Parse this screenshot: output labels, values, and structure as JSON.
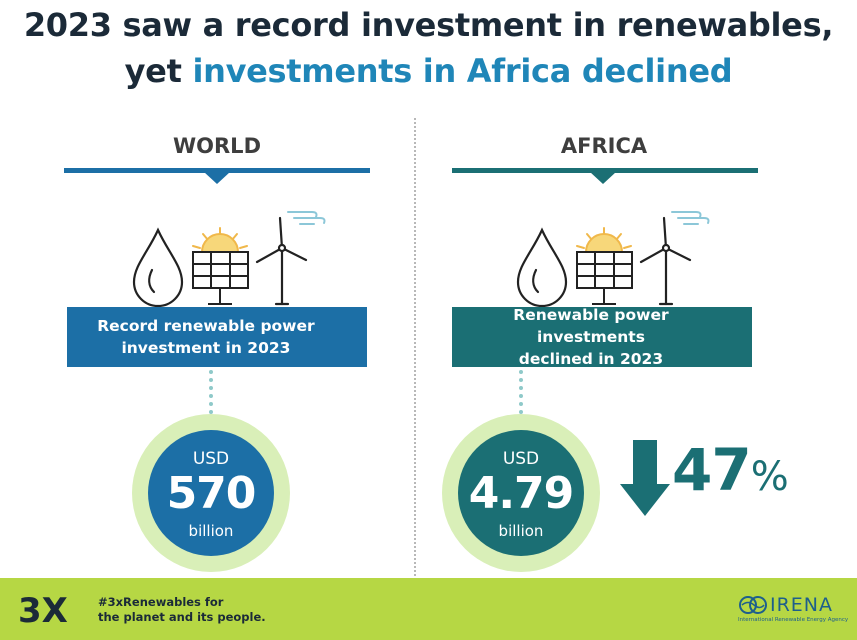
{
  "title": {
    "line1": "2023 saw a record investment in renewables,",
    "line2_prefix": "yet ",
    "line2_accent": "investments in Africa declined"
  },
  "world": {
    "label": "WORLD",
    "banner_line1": "Record renewable power",
    "banner_line2": "investment in 2023",
    "currency": "USD",
    "amount": "570",
    "unit": "billion"
  },
  "africa": {
    "label": "AFRICA",
    "banner_line1": "Renewable power investments",
    "banner_line2": "declined in 2023",
    "currency": "USD",
    "amount": "4.79",
    "unit": "billion",
    "decline_value": "47",
    "decline_symbol": "%"
  },
  "footer": {
    "logo_text": "3X",
    "hashtag_line1": "#3xRenewables for",
    "hashtag_line2": "the planet and its people.",
    "org_name": "IRENA",
    "org_full": "International Renewable Energy Agency"
  },
  "colors": {
    "world_blue": "#1c6fa6",
    "africa_teal": "#1b6f74",
    "title_accent": "#1f86b8",
    "footer_green": "#b6d744",
    "ring_green": "#d9efb8"
  },
  "icons": [
    "water-drop-icon",
    "solar-panel-icon",
    "wind-turbine-icon",
    "down-arrow-icon"
  ]
}
